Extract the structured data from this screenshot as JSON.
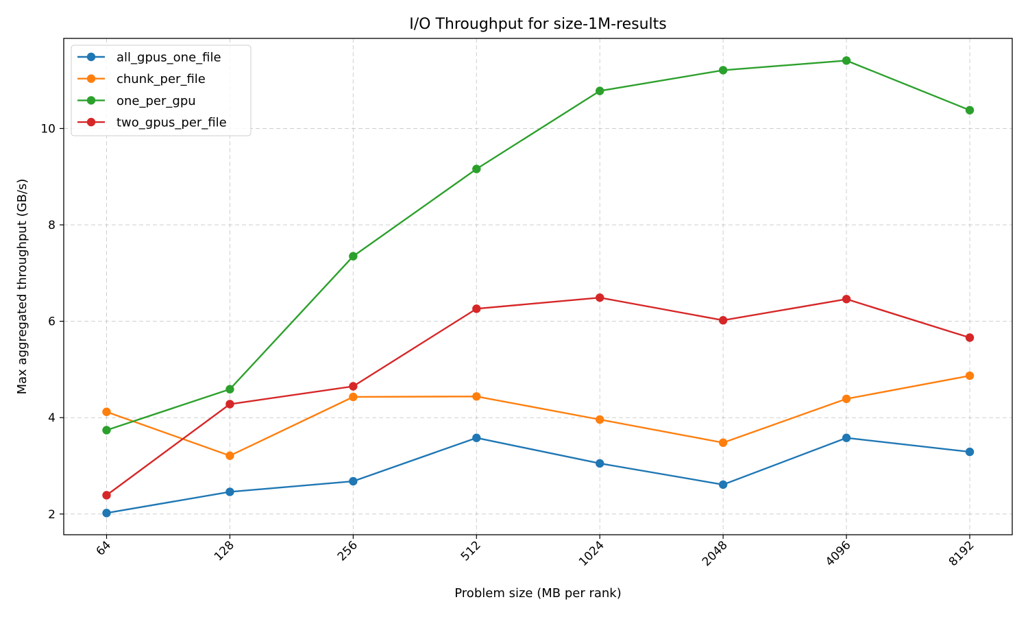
{
  "chart_data": {
    "type": "line",
    "title": "I/O Throughput for size-1M-results",
    "xlabel": "Problem size (MB per rank)",
    "ylabel": "Max aggregated throughput (GB/s)",
    "categories": [
      "64",
      "128",
      "256",
      "512",
      "1024",
      "2048",
      "4096",
      "8192"
    ],
    "yticks": [
      2,
      4,
      6,
      8,
      10
    ],
    "ylim": [
      1.57,
      11.87
    ],
    "grid": true,
    "legend_position": "top-left",
    "series": [
      {
        "name": "all_gpus_one_file",
        "color": "#1f77b4",
        "values": [
          2.02,
          2.46,
          2.68,
          3.58,
          3.05,
          2.61,
          3.58,
          3.29
        ]
      },
      {
        "name": "chunk_per_file",
        "color": "#ff7f0e",
        "values": [
          4.12,
          3.21,
          4.43,
          4.44,
          3.96,
          3.48,
          4.39,
          4.87
        ]
      },
      {
        "name": "one_per_gpu",
        "color": "#2ca02c",
        "values": [
          3.74,
          4.59,
          7.35,
          9.16,
          10.78,
          11.21,
          11.41,
          10.38
        ]
      },
      {
        "name": "two_gpus_per_file",
        "color": "#d62728",
        "values": [
          2.39,
          4.28,
          4.65,
          6.26,
          6.49,
          6.02,
          6.46,
          5.66
        ]
      }
    ]
  }
}
